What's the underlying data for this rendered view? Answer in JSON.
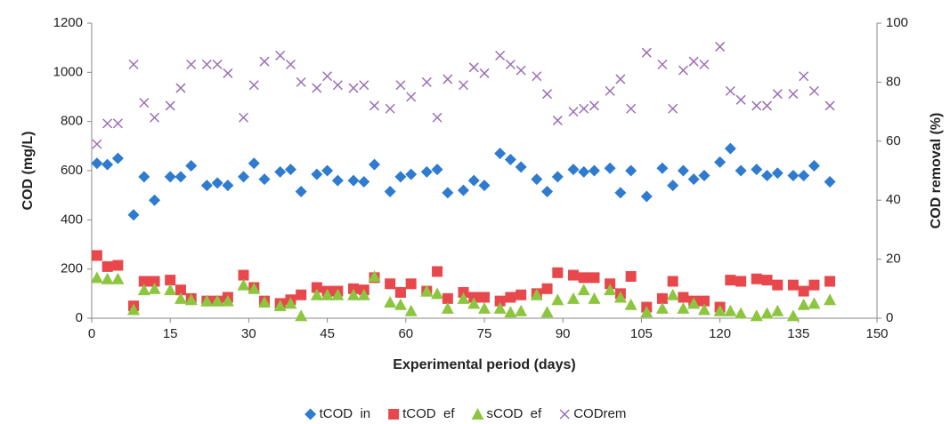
{
  "chart_data": {
    "type": "scatter",
    "x_label": "Experimental period (days)",
    "y_label": "COD (mg/L)",
    "y2_label": "COD removal (%)",
    "xlim": [
      0,
      150
    ],
    "xticks": [
      0,
      15,
      30,
      45,
      60,
      75,
      90,
      105,
      120,
      135,
      150
    ],
    "ylim": [
      0,
      1200
    ],
    "yticks": [
      0,
      200,
      400,
      600,
      800,
      1000,
      1200
    ],
    "y2lim": [
      0,
      100
    ],
    "y2ticks": [
      0,
      20,
      40,
      60,
      80,
      100
    ],
    "grid": false,
    "legend": "bottom",
    "x": [
      1,
      3,
      5,
      8,
      10,
      12,
      15,
      17,
      19,
      22,
      24,
      26,
      29,
      31,
      33,
      36,
      38,
      40,
      43,
      45,
      47,
      50,
      52,
      54,
      57,
      59,
      61,
      64,
      66,
      68,
      71,
      73,
      75,
      78,
      80,
      82,
      85,
      87,
      89,
      92,
      94,
      96,
      99,
      101,
      103,
      106,
      109,
      111,
      113,
      115,
      117,
      120,
      122,
      124,
      127,
      129,
      131,
      134,
      136,
      138,
      141
    ],
    "series": [
      {
        "name": "tCOD  in",
        "color": "#2e7bcf",
        "marker": "diamond",
        "values": [
          630,
          625,
          650,
          420,
          575,
          480,
          575,
          575,
          620,
          540,
          550,
          540,
          575,
          630,
          565,
          595,
          605,
          515,
          585,
          600,
          560,
          560,
          555,
          625,
          515,
          575,
          585,
          595,
          605,
          510,
          520,
          560,
          540,
          670,
          645,
          615,
          565,
          515,
          575,
          605,
          595,
          600,
          610,
          510,
          600,
          495,
          610,
          540,
          600,
          565,
          580,
          635,
          690,
          600,
          605,
          580,
          590,
          580,
          580,
          620,
          555
        ]
      },
      {
        "name": "tCOD  ef",
        "color": "#e8474b",
        "marker": "square",
        "values": [
          255,
          210,
          215,
          50,
          150,
          150,
          155,
          115,
          80,
          70,
          70,
          85,
          175,
          125,
          70,
          60,
          75,
          95,
          125,
          110,
          110,
          120,
          115,
          165,
          140,
          105,
          140,
          110,
          190,
          80,
          105,
          85,
          85,
          70,
          85,
          95,
          100,
          120,
          185,
          175,
          165,
          165,
          140,
          100,
          170,
          45,
          80,
          150,
          85,
          70,
          70,
          45,
          155,
          150,
          160,
          155,
          135,
          135,
          110,
          135,
          150
        ]
      },
      {
        "name": "sCOD  ef",
        "color": "#8cc63f",
        "marker": "triangle",
        "values": [
          165,
          160,
          160,
          35,
          115,
          120,
          115,
          80,
          75,
          70,
          70,
          70,
          135,
          120,
          65,
          50,
          60,
          10,
          95,
          95,
          95,
          95,
          95,
          170,
          65,
          55,
          30,
          110,
          100,
          40,
          80,
          60,
          40,
          40,
          25,
          30,
          95,
          25,
          75,
          80,
          115,
          80,
          115,
          85,
          55,
          25,
          40,
          95,
          40,
          60,
          35,
          30,
          30,
          20,
          10,
          20,
          30,
          10,
          55,
          60,
          75
        ]
      },
      {
        "name": "CODrem",
        "color": "#9b6fb5",
        "marker": "cross",
        "axis": "y2",
        "values": [
          59,
          66,
          66,
          86,
          73,
          68,
          72,
          78,
          86,
          86,
          86,
          83,
          68,
          79,
          87,
          89,
          86,
          80,
          78,
          82,
          79,
          78,
          79,
          72,
          71,
          79,
          75,
          80,
          68,
          81,
          79,
          85,
          83,
          89,
          86,
          84,
          82,
          76,
          67,
          70,
          71,
          72,
          77,
          81,
          71,
          90,
          86,
          71,
          84,
          87,
          86,
          92,
          77,
          74,
          72,
          72,
          76,
          76,
          82,
          77,
          72
        ]
      }
    ]
  }
}
